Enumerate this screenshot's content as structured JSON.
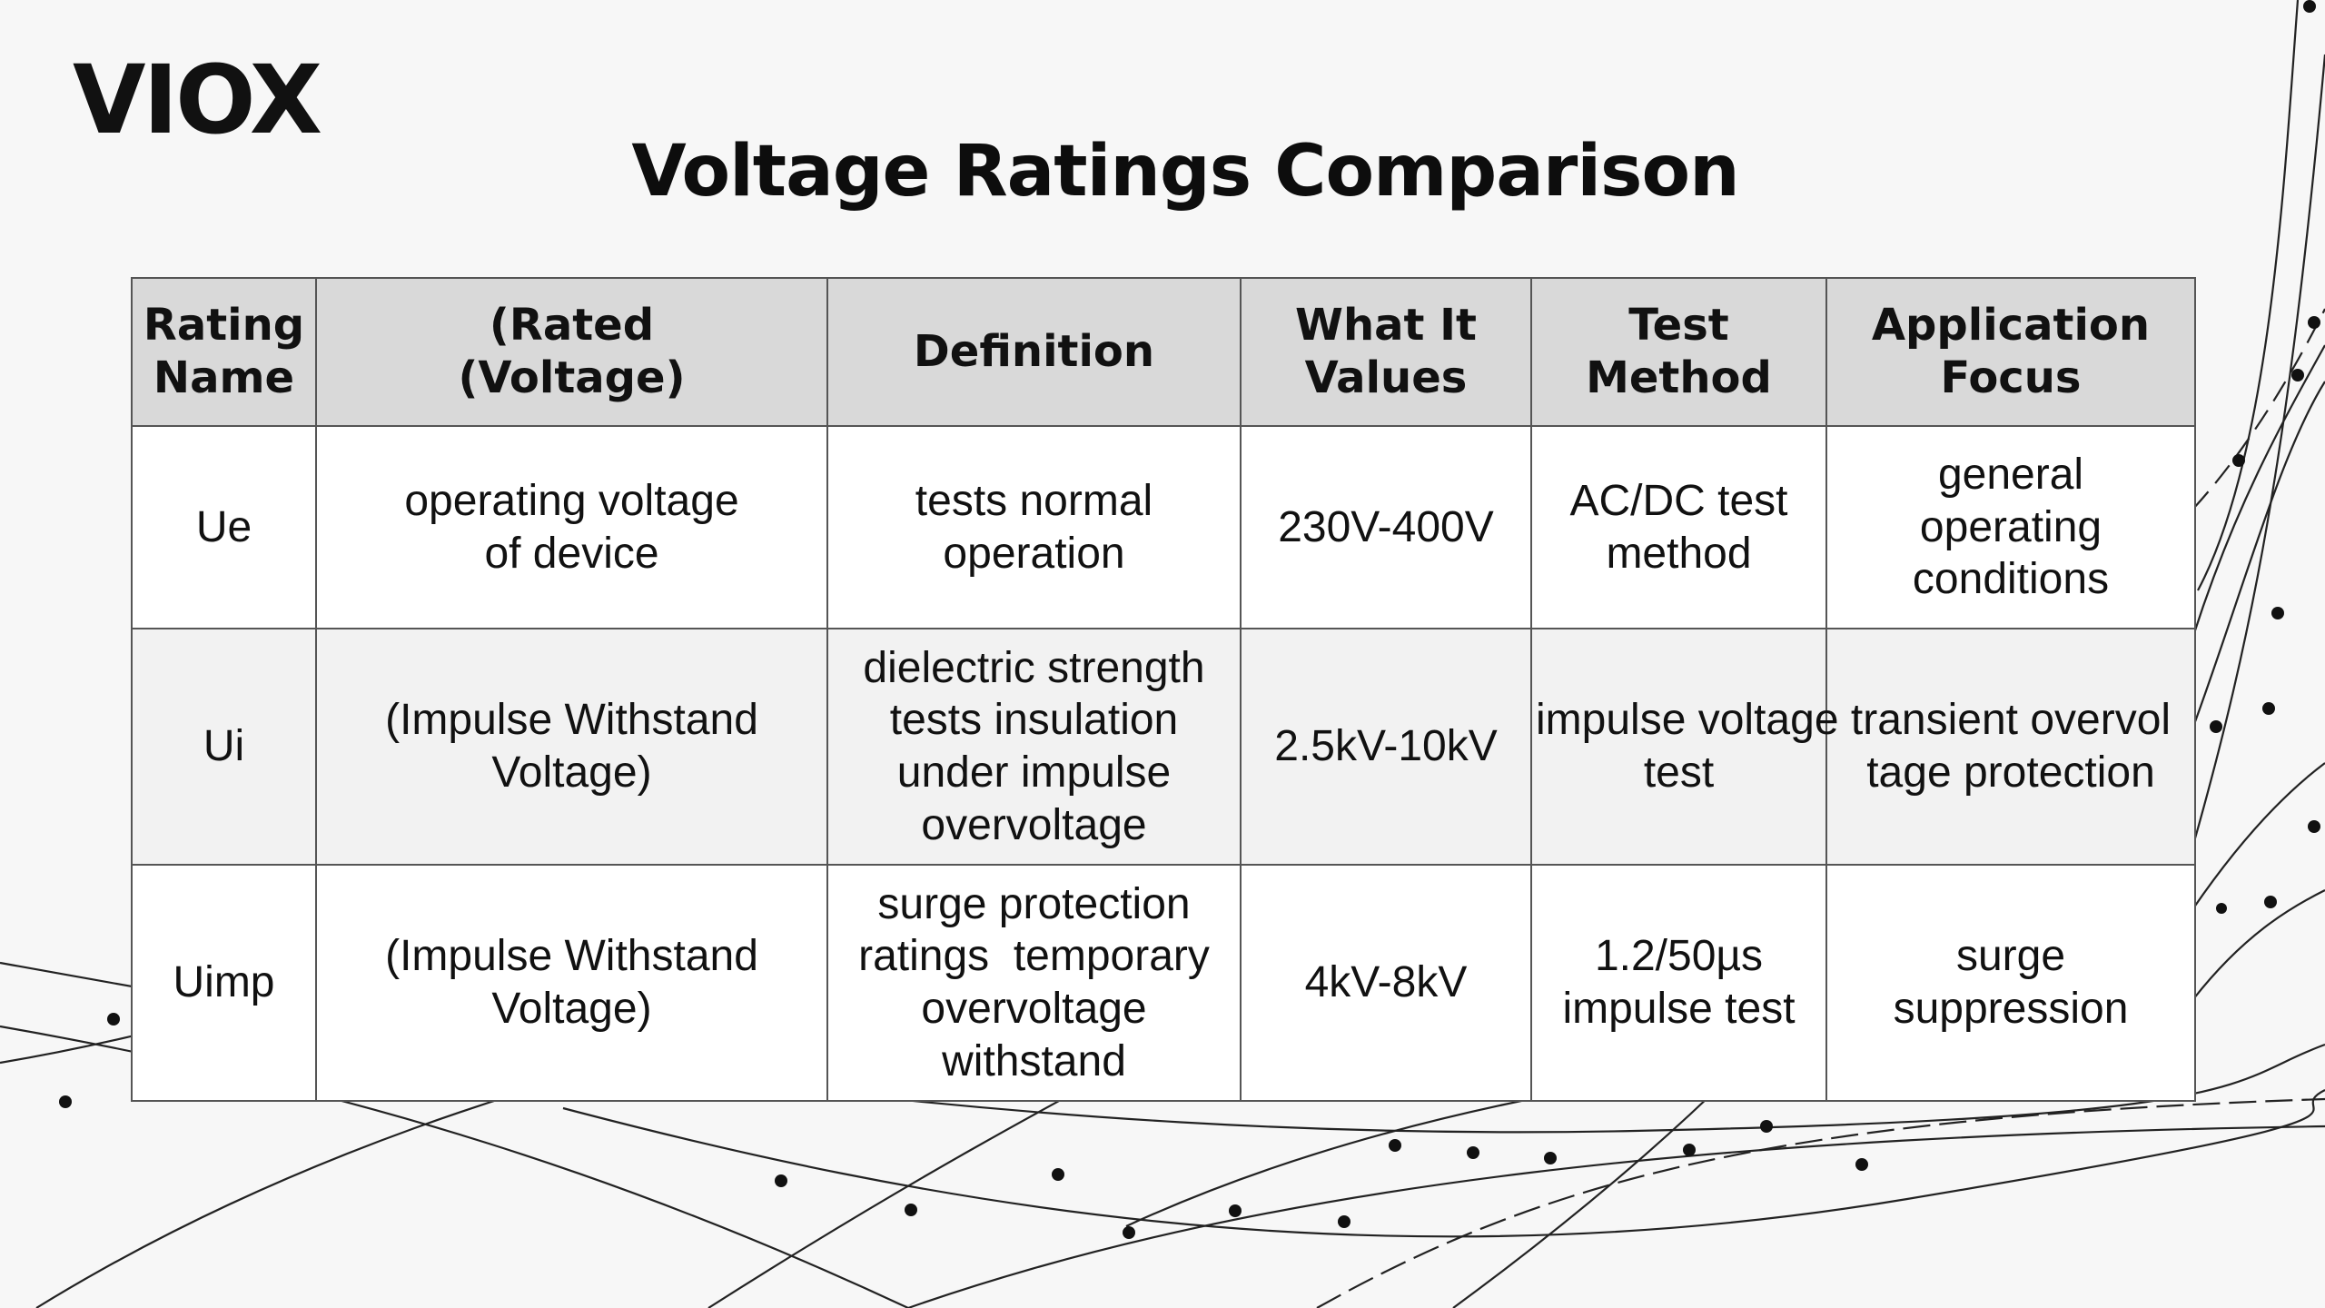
{
  "brand": {
    "logo": "VIOX"
  },
  "title": "Voltage Ratings Comparison",
  "table": {
    "headers": [
      [
        "Rating",
        "Name"
      ],
      [
        "(Rated",
        "(Voltage)"
      ],
      [
        "Definition"
      ],
      [
        "What It",
        "Values"
      ],
      [
        "Test",
        "Method"
      ],
      [
        "Application",
        "Focus"
      ]
    ],
    "rows": [
      [
        [
          "Ue"
        ],
        [
          "operating voltage",
          "of device"
        ],
        [
          "tests normal",
          "operation"
        ],
        [
          "230V-400V"
        ],
        [
          "AC/DC test",
          "method"
        ],
        [
          "general",
          "operating",
          "conditions"
        ]
      ],
      [
        [
          "Ui"
        ],
        [
          "(Impulse Withstand",
          "Voltage)"
        ],
        [
          "dielectric strength",
          "tests insulation",
          "under impulse",
          "overvoltage"
        ],
        [
          "2.5kV-10kV"
        ],
        [
          "impulse voltage",
          "test"
        ],
        [
          "transient overvol",
          "tage protection"
        ]
      ],
      [
        [
          "Uimp"
        ],
        [
          "(Impulse Withstand",
          "Voltage)"
        ],
        [
          "surge protection",
          "ratings  temporary",
          "overvoltage",
          "withstand"
        ],
        [
          "4kV-8kV"
        ],
        [
          "1.2/50µs",
          "impulse test"
        ],
        [
          "surge",
          "suppression"
        ]
      ]
    ]
  },
  "colors": {
    "header_bg": "#d9d9d9",
    "border": "#555555",
    "text": "#111111",
    "decor_lines": "#1a1a1a"
  }
}
